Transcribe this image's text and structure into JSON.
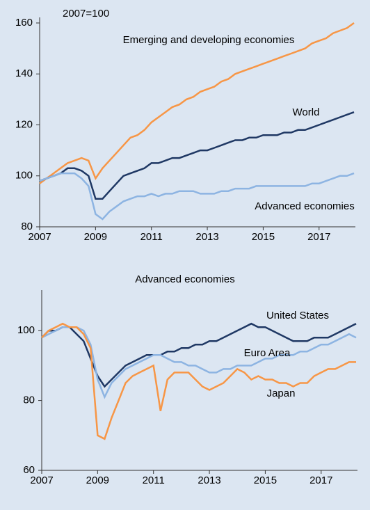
{
  "chart_data": [
    {
      "type": "line",
      "annotation": "2007=100",
      "x": [
        2007,
        2007.25,
        2007.5,
        2007.75,
        2008,
        2008.25,
        2008.5,
        2008.75,
        2009,
        2009.25,
        2009.5,
        2009.75,
        2010,
        2010.25,
        2010.5,
        2010.75,
        2011,
        2011.25,
        2011.5,
        2011.75,
        2012,
        2012.25,
        2012.5,
        2012.75,
        2013,
        2013.25,
        2013.5,
        2013.75,
        2014,
        2014.25,
        2014.5,
        2014.75,
        2015,
        2015.25,
        2015.5,
        2015.75,
        2016,
        2016.25,
        2016.5,
        2016.75,
        2017,
        2017.25,
        2017.5,
        2017.75,
        2018,
        2018.25
      ],
      "xlim": [
        2007,
        2018.3
      ],
      "xticks": [
        2007,
        2009,
        2011,
        2013,
        2015,
        2017
      ],
      "ylim": [
        80,
        160
      ],
      "yticks": [
        80,
        100,
        120,
        140,
        160
      ],
      "series": [
        {
          "name": "Emerging and developing economies",
          "color": "#f79646",
          "values": [
            97,
            99,
            101,
            103,
            105,
            106,
            107,
            106,
            99,
            103,
            106,
            109,
            112,
            115,
            116,
            118,
            121,
            123,
            125,
            127,
            128,
            130,
            131,
            133,
            134,
            135,
            137,
            138,
            140,
            141,
            142,
            143,
            144,
            145,
            146,
            147,
            148,
            149,
            150,
            152,
            153,
            154,
            156,
            157,
            158,
            160
          ]
        },
        {
          "name": "World",
          "color": "#1f3864",
          "values": [
            98,
            99,
            100,
            101,
            103,
            103,
            102,
            100,
            91,
            91,
            94,
            97,
            100,
            101,
            102,
            103,
            105,
            105,
            106,
            107,
            107,
            108,
            109,
            110,
            110,
            111,
            112,
            113,
            114,
            114,
            115,
            115,
            116,
            116,
            116,
            117,
            117,
            118,
            118,
            119,
            120,
            121,
            122,
            123,
            124,
            125
          ]
        },
        {
          "name": "Advanced economies",
          "color": "#8db4e2",
          "values": [
            98,
            99,
            100,
            101,
            101,
            101,
            99,
            96,
            85,
            83,
            86,
            88,
            90,
            91,
            92,
            92,
            93,
            92,
            93,
            93,
            94,
            94,
            94,
            93,
            93,
            93,
            94,
            94,
            95,
            95,
            95,
            96,
            96,
            96,
            96,
            96,
            96,
            96,
            96,
            97,
            97,
            98,
            99,
            100,
            100,
            101
          ]
        }
      ]
    },
    {
      "type": "line",
      "title": "Advanced economies",
      "x": [
        2007,
        2007.25,
        2007.5,
        2007.75,
        2008,
        2008.25,
        2008.5,
        2008.75,
        2009,
        2009.25,
        2009.5,
        2009.75,
        2010,
        2010.25,
        2010.5,
        2010.75,
        2011,
        2011.25,
        2011.5,
        2011.75,
        2012,
        2012.25,
        2012.5,
        2012.75,
        2013,
        2013.25,
        2013.5,
        2013.75,
        2014,
        2014.25,
        2014.5,
        2014.75,
        2015,
        2015.25,
        2015.5,
        2015.75,
        2016,
        2016.25,
        2016.5,
        2016.75,
        2017,
        2017.25,
        2017.5,
        2017.75,
        2018,
        2018.25
      ],
      "xlim": [
        2007,
        2018.3
      ],
      "xticks": [
        2007,
        2009,
        2011,
        2013,
        2015,
        2017
      ],
      "ylim": [
        60,
        110
      ],
      "yticks": [
        60,
        80,
        100
      ],
      "series": [
        {
          "name": "United States",
          "color": "#1f3864",
          "values": [
            98,
            100,
            100,
            101,
            101,
            99,
            97,
            92,
            87,
            84,
            86,
            88,
            90,
            91,
            92,
            93,
            93,
            93,
            94,
            94,
            95,
            95,
            96,
            96,
            97,
            97,
            98,
            99,
            100,
            101,
            102,
            101,
            101,
            100,
            99,
            98,
            97,
            97,
            97,
            98,
            98,
            98,
            99,
            100,
            101,
            102
          ]
        },
        {
          "name": "Euro Area",
          "color": "#8db4e2",
          "values": [
            98,
            99,
            100,
            101,
            101,
            101,
            100,
            96,
            86,
            81,
            85,
            87,
            89,
            90,
            91,
            92,
            93,
            93,
            92,
            91,
            91,
            90,
            90,
            89,
            88,
            88,
            89,
            89,
            90,
            90,
            90,
            91,
            92,
            92,
            93,
            93,
            93,
            94,
            94,
            95,
            96,
            96,
            97,
            98,
            99,
            98
          ]
        },
        {
          "name": "Japan",
          "color": "#f79646",
          "values": [
            98,
            100,
            101,
            102,
            101,
            101,
            99,
            95,
            70,
            69,
            75,
            80,
            85,
            87,
            88,
            89,
            90,
            77,
            86,
            88,
            88,
            88,
            86,
            84,
            83,
            84,
            85,
            87,
            89,
            88,
            86,
            87,
            86,
            86,
            85,
            85,
            84,
            85,
            85,
            87,
            88,
            89,
            89,
            90,
            91,
            91
          ]
        }
      ]
    }
  ]
}
